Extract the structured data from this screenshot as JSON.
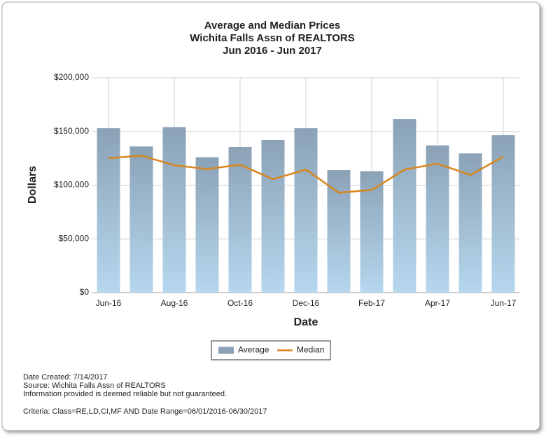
{
  "chart_data": {
    "type": "bar-line",
    "title": [
      "Average and Median Prices",
      "Wichita Falls Assn of REALTORS",
      "Jun 2016 - Jun 2017"
    ],
    "x_label": "Date",
    "y_label": "Dollars",
    "categories": [
      "Jun-16",
      null,
      "Aug-16",
      null,
      "Oct-16",
      null,
      "Dec-16",
      null,
      "Feb-17",
      null,
      "Apr-17",
      null,
      "Jun-17"
    ],
    "series": [
      {
        "name": "Average",
        "kind": "bar",
        "color": "#8ba2b6",
        "values": [
          153000,
          136000,
          154000,
          126000,
          135500,
          142000,
          153000,
          114000,
          113000,
          161500,
          137000,
          129500,
          146500
        ]
      },
      {
        "name": "Median",
        "kind": "line",
        "color": "#d8861c",
        "values": [
          125000,
          127500,
          118500,
          115000,
          119000,
          105500,
          114500,
          93000,
          95500,
          114500,
          120000,
          109500,
          126500
        ]
      }
    ],
    "ylim": [
      0,
      200000
    ],
    "yticks": [
      {
        "value": 0,
        "label": "$0"
      },
      {
        "value": 50000,
        "label": "$50,000"
      },
      {
        "value": 100000,
        "label": "$100,000"
      },
      {
        "value": 150000,
        "label": "$150,000"
      },
      {
        "value": 200000,
        "label": "$200,000"
      }
    ],
    "grid": true,
    "legend": "bottom"
  },
  "footer": [
    "Date Created: 7/14/2017",
    "Source: Wichita Falls Assn of REALTORS",
    "Information provided is deemed reliable but not guaranteed.",
    "Criteria: Class=RE,LD,CI,MF AND Date Range=06/01/2016-06/30/2017"
  ]
}
